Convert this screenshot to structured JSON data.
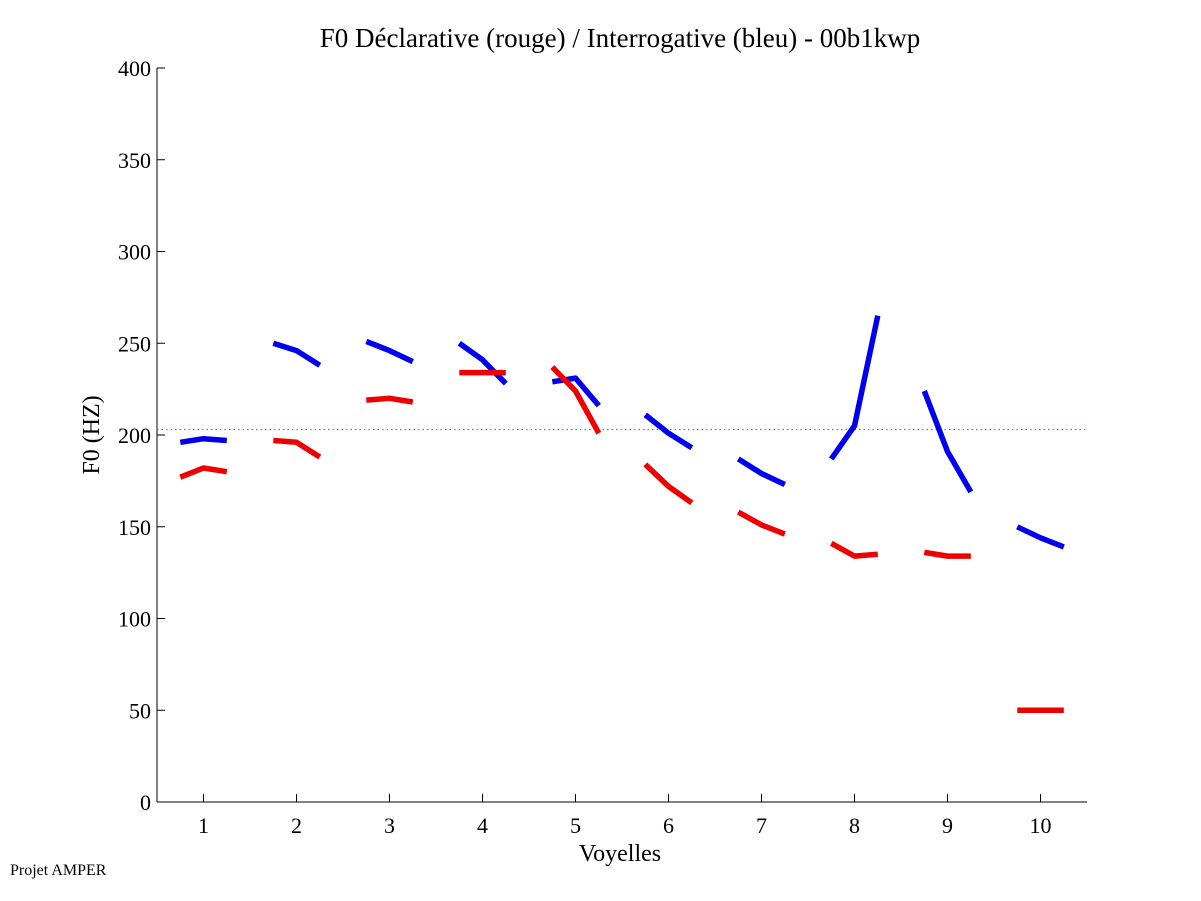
{
  "chart_data": {
    "type": "line",
    "title": "F0 Déclarative (rouge) / Interrogative (bleu) - 00b1kwp",
    "xlabel": "Voyelles",
    "ylabel": "F0 (HZ)",
    "xlim": [
      0.5,
      10.5
    ],
    "ylim": [
      0,
      400
    ],
    "xticks": [
      1,
      2,
      3,
      4,
      5,
      6,
      7,
      8,
      9,
      10
    ],
    "yticks": [
      0,
      50,
      100,
      150,
      200,
      250,
      300,
      350,
      400
    ],
    "reference_line": {
      "y": 203,
      "color": "#00cc00",
      "style": "dotted"
    },
    "series": [
      {
        "color": "#0000ee",
        "segments": [
          {
            "x": [
              0.75,
              1.0,
              1.25
            ],
            "y": [
              196,
              198,
              197
            ]
          },
          {
            "x": [
              1.75,
              2.0,
              2.25
            ],
            "y": [
              250,
              246,
              238
            ]
          },
          {
            "x": [
              2.75,
              3.0,
              3.25
            ],
            "y": [
              251,
              246,
              240
            ]
          },
          {
            "x": [
              3.75,
              4.0,
              4.25
            ],
            "y": [
              250,
              241,
              228
            ]
          },
          {
            "x": [
              4.75,
              5.0,
              5.25
            ],
            "y": [
              229,
              231,
              216
            ]
          },
          {
            "x": [
              5.75,
              6.0,
              6.25
            ],
            "y": [
              211,
              201,
              193
            ]
          },
          {
            "x": [
              6.75,
              7.0,
              7.25
            ],
            "y": [
              187,
              179,
              173
            ]
          },
          {
            "x": [
              7.75,
              8.0,
              8.25
            ],
            "y": [
              187,
              205,
              265
            ]
          },
          {
            "x": [
              8.75,
              9.0,
              9.25
            ],
            "y": [
              224,
              191,
              169
            ]
          },
          {
            "x": [
              9.75,
              10.0,
              10.25
            ],
            "y": [
              150,
              144,
              139
            ]
          }
        ]
      },
      {
        "color": "#ee0000",
        "segments": [
          {
            "x": [
              0.75,
              1.0,
              1.25
            ],
            "y": [
              177,
              182,
              180
            ]
          },
          {
            "x": [
              1.75,
              2.0,
              2.25
            ],
            "y": [
              197,
              196,
              188
            ]
          },
          {
            "x": [
              2.75,
              3.0,
              3.25
            ],
            "y": [
              219,
              220,
              218
            ]
          },
          {
            "x": [
              3.75,
              4.0,
              4.25
            ],
            "y": [
              234,
              234,
              234
            ]
          },
          {
            "x": [
              4.75,
              5.0,
              5.25
            ],
            "y": [
              237,
              224,
              201
            ]
          },
          {
            "x": [
              5.75,
              6.0,
              6.25
            ],
            "y": [
              184,
              172,
              163
            ]
          },
          {
            "x": [
              6.75,
              7.0,
              7.25
            ],
            "y": [
              158,
              151,
              146
            ]
          },
          {
            "x": [
              7.75,
              8.0,
              8.25
            ],
            "y": [
              141,
              134,
              135
            ]
          },
          {
            "x": [
              8.75,
              9.0,
              9.25
            ],
            "y": [
              136,
              134,
              134
            ]
          },
          {
            "x": [
              9.75,
              10.0,
              10.25
            ],
            "y": [
              50,
              50,
              50
            ]
          }
        ]
      }
    ]
  },
  "footer": {
    "credit": "Projet AMPER"
  }
}
